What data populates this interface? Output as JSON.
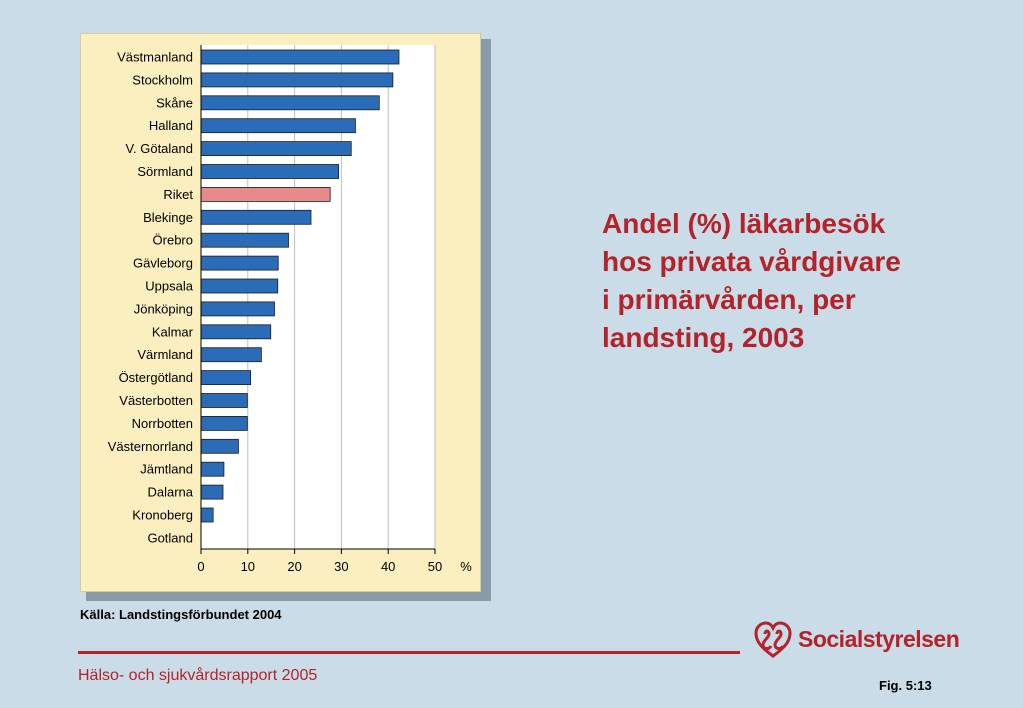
{
  "title_lines": [
    "Andel (%) läkarbesök",
    "hos privata vårdgivare",
    "i primärvården, per",
    "landsting, 2003"
  ],
  "source": "Källa: Landstingsförbundet 2004",
  "footer": {
    "report": "Hälso- och sjukvårdsrapport 2005",
    "figure": "Fig. 5:13",
    "logo_text": "Socialstyrelsen"
  },
  "colors": {
    "bar": "#2b6cb8",
    "highlight": "#e88a8c",
    "accent": "#b5232a",
    "panel": "#fbeebf"
  },
  "chart_data": {
    "type": "bar",
    "orientation": "horizontal",
    "categories": [
      "Västmanland",
      "Stockholm",
      "Skåne",
      "Halland",
      "V. Götaland",
      "Sörmland",
      "Riket",
      "Blekinge",
      "Örebro",
      "Gävleborg",
      "Uppsala",
      "Jönköping",
      "Kalmar",
      "Värmland",
      "Östergötland",
      "Västerbotten",
      "Norrbotten",
      "Västernorrland",
      "Jämtland",
      "Dalarna",
      "Kronoberg",
      "Gotland"
    ],
    "values": [
      42.3,
      41,
      38.1,
      33,
      32.1,
      29.4,
      27.6,
      23.5,
      18.7,
      16.5,
      16.4,
      15.7,
      14.9,
      12.9,
      10.6,
      9.9,
      9.9,
      8,
      4.9,
      4.7,
      2.6,
      0
    ],
    "highlight": "Riket",
    "xticks": [
      0,
      10,
      20,
      30,
      40,
      50
    ],
    "xunit": "%",
    "xlim": [
      0,
      50
    ],
    "grid": true
  }
}
